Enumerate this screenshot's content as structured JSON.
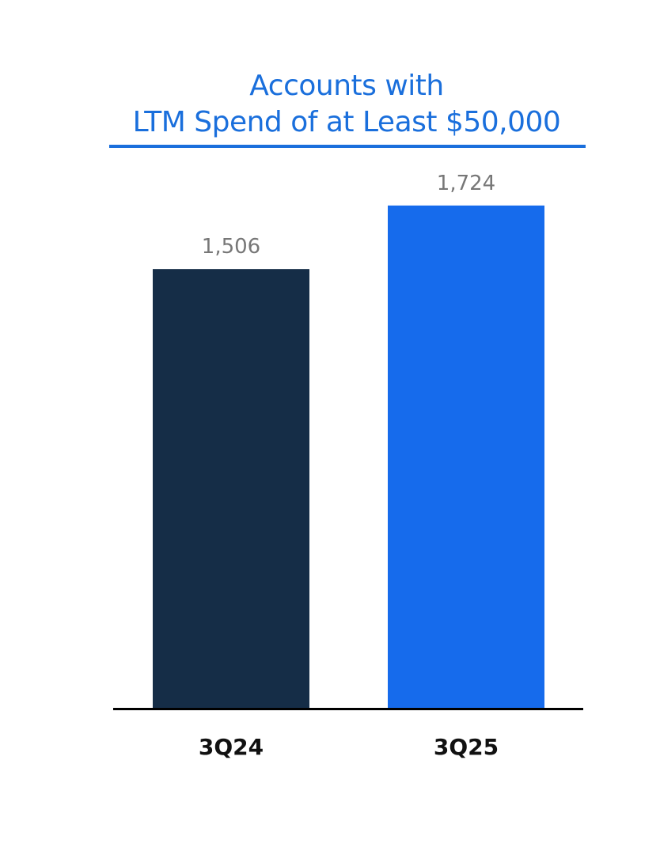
{
  "chart_data": {
    "type": "bar",
    "title_lines": [
      "Accounts with",
      "LTM Spend of at Least $50,000"
    ],
    "categories": [
      "3Q24",
      "3Q25"
    ],
    "values": [
      1506,
      1724
    ],
    "value_labels": [
      "1,506",
      "1,724"
    ],
    "bar_colors": [
      "#152d47",
      "#166bec"
    ],
    "title_color": "#1a6fdc",
    "axis_color": "#000000",
    "xlabel": "",
    "ylabel": "",
    "ylim": [
      0,
      1805
    ],
    "grid": false,
    "legend": "none"
  }
}
